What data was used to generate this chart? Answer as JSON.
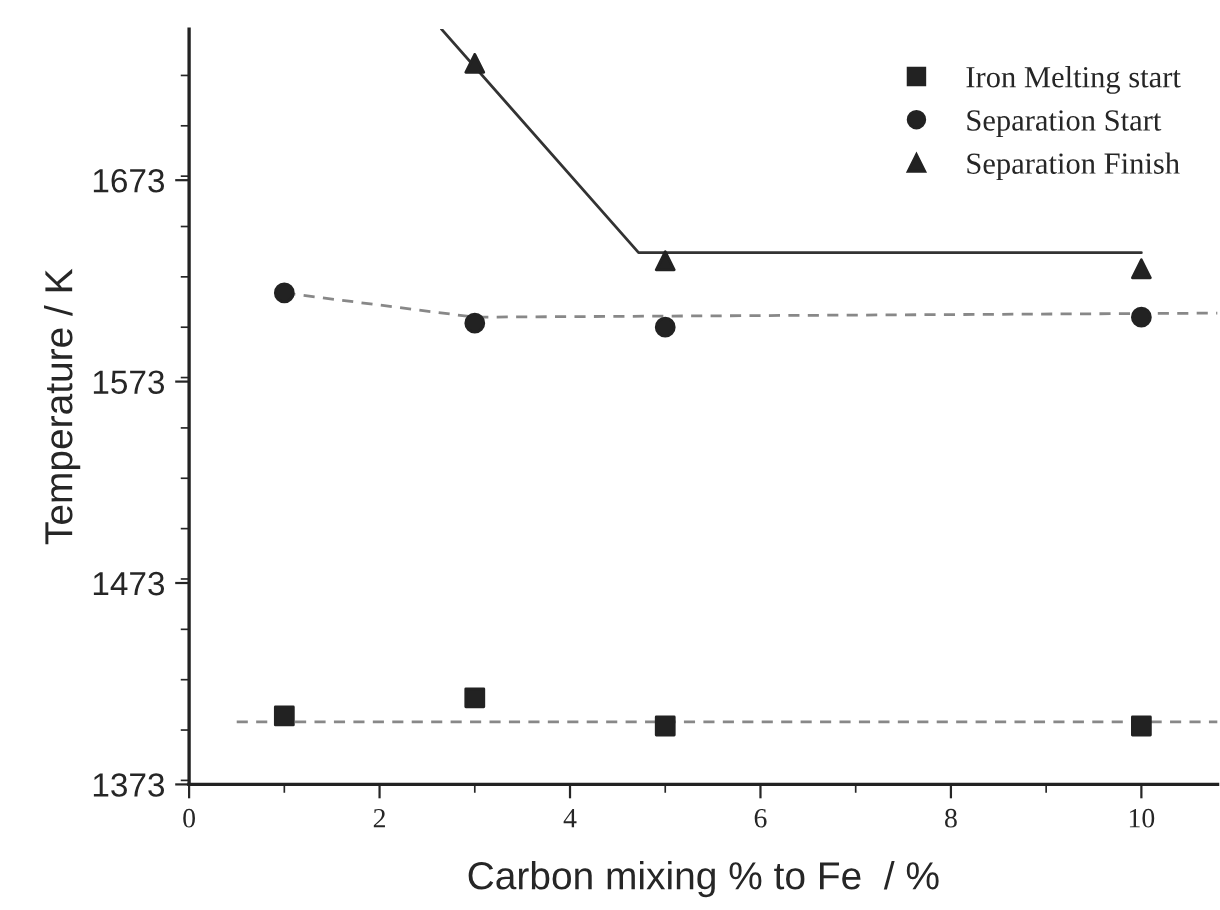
{
  "chart_data": {
    "type": "scatter",
    "xlabel": "Carbon mixing % to Fe  / %",
    "ylabel": "Temperature / K",
    "xlim": [
      0,
      10.8
    ],
    "xticks": [
      0,
      2,
      4,
      6,
      8,
      10
    ],
    "ylim": [
      1373,
      1748
    ],
    "yticks": [
      1373,
      1473,
      1573,
      1673
    ],
    "legend": "top right",
    "grid": false,
    "series": [
      {
        "name": "Iron Melting start",
        "marker": "square",
        "color": "#222222",
        "x": [
          1,
          3,
          5,
          10
        ],
        "values": [
          1407,
          1416,
          1402,
          1402
        ]
      },
      {
        "name": "Separation Start",
        "marker": "circle",
        "color": "#222222",
        "x": [
          1,
          3,
          5,
          10
        ],
        "values": [
          1617,
          1602,
          1600,
          1605
        ]
      },
      {
        "name": "Separation Finish",
        "marker": "triangle",
        "color": "#222222",
        "x": [
          3,
          5,
          10
        ],
        "values": [
          1731,
          1633,
          1629
        ]
      },
      {
        "type": "line",
        "line_style": "dashed",
        "color": "#888888",
        "x": [
          0.5,
          10.8
        ],
        "values": [
          1404,
          1404
        ]
      },
      {
        "type": "line",
        "line_style": "dashed",
        "color": "#888888",
        "x": [
          1,
          3,
          10.8
        ],
        "values": [
          1617,
          1605,
          1607
        ]
      },
      {
        "type": "line",
        "line_style": "solid",
        "color": "#333333",
        "x": [
          2.65,
          4.72,
          10
        ],
        "values": [
          1748,
          1637,
          1637
        ]
      }
    ]
  }
}
